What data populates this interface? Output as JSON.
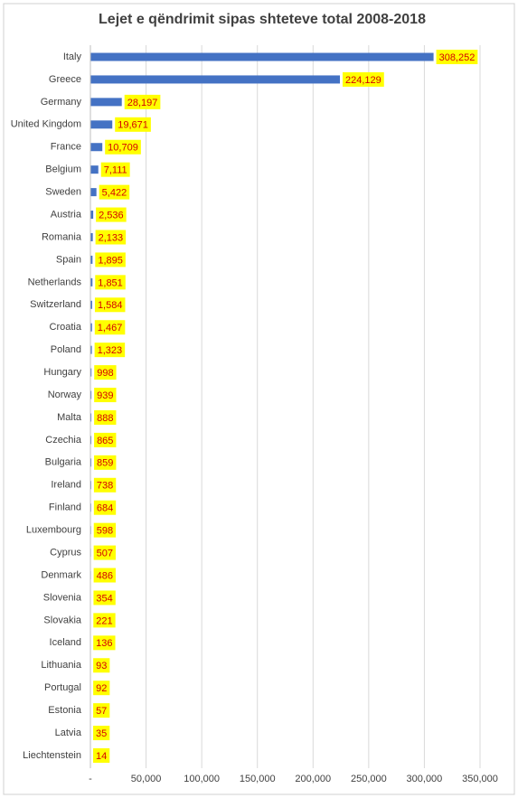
{
  "chart_data": {
    "type": "bar",
    "orientation": "horizontal",
    "title": "Lejet e qëndrimit sipas shteteve total 2008-2018",
    "categories": [
      "Italy",
      "Greece",
      "Germany",
      "United Kingdom",
      "France",
      "Belgium",
      "Sweden",
      "Austria",
      "Romania",
      "Spain",
      "Netherlands",
      "Switzerland",
      "Croatia",
      "Poland",
      "Hungary",
      "Norway",
      "Malta",
      "Czechia",
      "Bulgaria",
      "Ireland",
      "Finland",
      "Luxembourg",
      "Cyprus",
      "Denmark",
      "Slovenia",
      "Slovakia",
      "Iceland",
      "Lithuania",
      "Portugal",
      "Estonia",
      "Latvia",
      "Liechtenstein"
    ],
    "values": [
      308252,
      224129,
      28197,
      19671,
      10709,
      7111,
      5422,
      2536,
      2133,
      1895,
      1851,
      1584,
      1467,
      1323,
      998,
      939,
      888,
      865,
      859,
      738,
      684,
      598,
      507,
      486,
      354,
      221,
      136,
      93,
      92,
      57,
      35,
      14
    ],
    "value_labels": [
      "308,252",
      "224,129",
      "28,197",
      "19,671",
      "10,709",
      "7,111",
      "5,422",
      "2,536",
      "2,133",
      "1,895",
      "1,851",
      "1,584",
      "1,467",
      "1,323",
      "998",
      "939",
      "888",
      "865",
      "859",
      "738",
      "684",
      "598",
      "507",
      "486",
      "354",
      "221",
      "136",
      "93",
      "92",
      "57",
      "35",
      "14"
    ],
    "color": "#4472c4",
    "xlim": [
      0,
      350000
    ],
    "xticks": [
      {
        "value": 0,
        "label": "-"
      },
      {
        "value": 50000,
        "label": "50,000"
      },
      {
        "value": 100000,
        "label": "100,000"
      },
      {
        "value": 150000,
        "label": "150,000"
      },
      {
        "value": 200000,
        "label": "200,000"
      },
      {
        "value": 250000,
        "label": "250,000"
      },
      {
        "value": 300000,
        "label": "300,000"
      },
      {
        "value": 350000,
        "label": "350,000"
      }
    ],
    "grid": true
  }
}
